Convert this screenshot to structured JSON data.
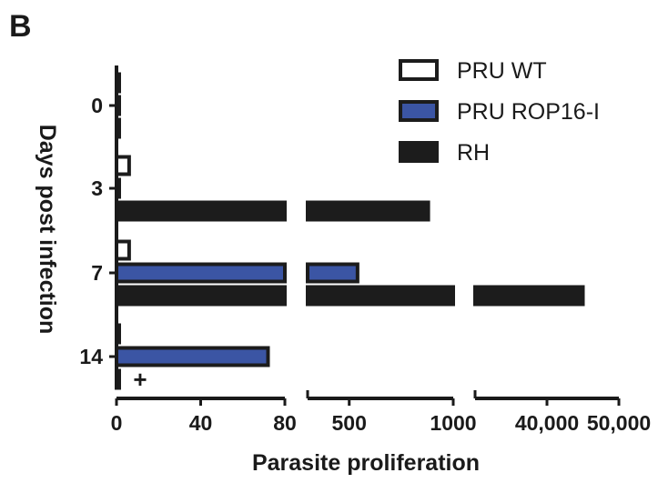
{
  "panel_label": "B",
  "chart_data": {
    "type": "bar",
    "orientation": "horizontal",
    "xlabel": "Parasite proliferation",
    "ylabel": "Days post infection",
    "categories": [
      "0",
      "3",
      "7",
      "14"
    ],
    "x_axis_segments": [
      {
        "range": [
          0,
          80
        ],
        "ticks": [
          0,
          40,
          80
        ],
        "tick_labels": [
          "0",
          "40",
          "80"
        ]
      },
      {
        "range": [
          300,
          1000
        ],
        "ticks": [
          500,
          1000
        ],
        "tick_labels": [
          "500",
          "1000"
        ]
      },
      {
        "range": [
          30000,
          50000
        ],
        "ticks": [
          40000,
          50000
        ],
        "tick_labels": [
          "40,000",
          "50,000"
        ]
      }
    ],
    "series": [
      {
        "name": "PRU WT",
        "color": "#ffffff",
        "values": [
          1,
          6,
          6,
          1
        ]
      },
      {
        "name": "PRU ROP16-I",
        "color": "#3b55a4",
        "values": [
          1,
          1,
          540,
          72
        ]
      },
      {
        "name": "RH",
        "color": "#1c1c1c",
        "values": [
          1,
          880,
          45000,
          1
        ]
      }
    ],
    "annotations": [
      {
        "text": "+",
        "category": "14",
        "series": "RH"
      }
    ],
    "legend_position": "top-right",
    "grid": false
  }
}
